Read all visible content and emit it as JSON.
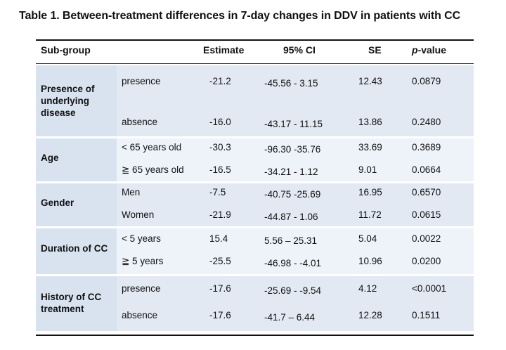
{
  "title": "Table 1. Between-treatment differences in 7-day changes in DDV in patients with CC",
  "colors": {
    "band_dark": "#e2e9f3",
    "band_light": "#eef3f9",
    "label_cell": "#d9e3f0"
  },
  "header": {
    "subgroup": "Sub-group",
    "estimate": "Estimate",
    "ci": "95% CI",
    "se": "SE",
    "p_italic": "p",
    "p_rest": "-value"
  },
  "groups": [
    {
      "label_lines": [
        "Presence of",
        "underlying",
        "disease"
      ],
      "rows": [
        {
          "level": "presence",
          "estimate": "-21.2",
          "ci": "-45.56 - 3.15",
          "se": "12.43",
          "p": "0.0879"
        },
        {
          "level": "absence",
          "estimate": "-16.0",
          "ci": "-43.17 - 11.15",
          "se": "13.86",
          "p": "0.2480"
        }
      ]
    },
    {
      "label_lines": [
        "Age"
      ],
      "rows": [
        {
          "level": "< 65 years old",
          "estimate": "-30.3",
          "ci": "-96.30 -35.76",
          "se": "33.69",
          "p": "0.3689"
        },
        {
          "level": "≧ 65 years old",
          "estimate": "-16.5",
          "ci": "-34.21 - 1.12",
          "se": "9.01",
          "p": "0.0664"
        }
      ]
    },
    {
      "label_lines": [
        "Gender"
      ],
      "rows": [
        {
          "level": "Men",
          "estimate": "-7.5",
          "ci": "-40.75 -25.69",
          "se": "16.95",
          "p": "0.6570"
        },
        {
          "level": "Women",
          "estimate": "-21.9",
          "ci": "-44.87 - 1.06",
          "se": "11.72",
          "p": "0.0615"
        }
      ]
    },
    {
      "label_lines": [
        "Duration of CC"
      ],
      "rows": [
        {
          "level": "< 5 years",
          "estimate": "15.4",
          "ci": "5.56 – 25.31",
          "se": "5.04",
          "p": "0.0022"
        },
        {
          "level": "≧ 5 years",
          "estimate": "-25.5",
          "ci": "-46.98 - -4.01",
          "se": "10.96",
          "p": "0.0200"
        }
      ]
    },
    {
      "label_lines": [
        "History of CC",
        "treatment"
      ],
      "rows": [
        {
          "level": "presence",
          "estimate": "-17.6",
          "ci": "-25.69 - -9.54",
          "se": "4.12",
          "p": "<0.0001"
        },
        {
          "level": "absence",
          "estimate": "-17.6",
          "ci": "-41.7 – 6.44",
          "se": "12.28",
          "p": "0.1511"
        }
      ]
    }
  ]
}
